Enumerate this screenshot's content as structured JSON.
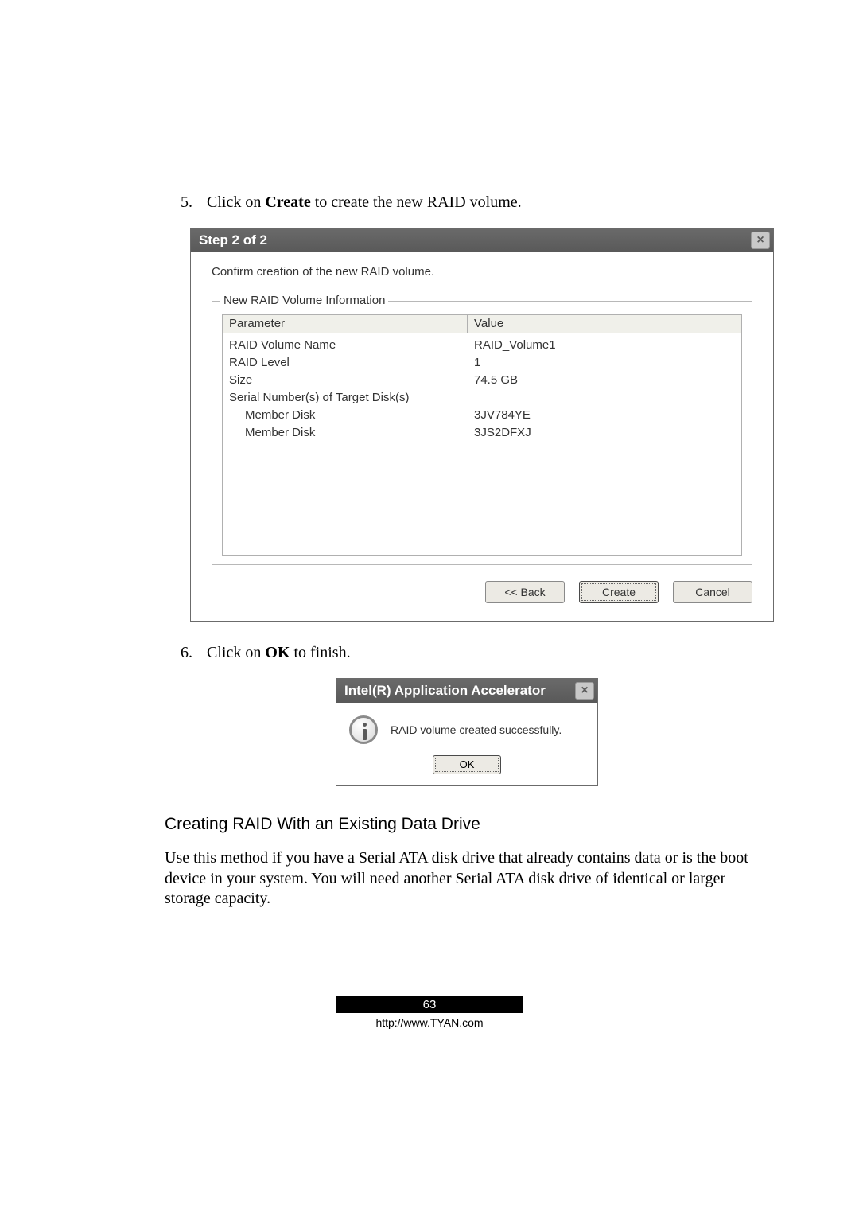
{
  "step5": {
    "num": "5.",
    "pre": "Click on ",
    "bold": "Create",
    "post": " to create the new RAID volume."
  },
  "step6": {
    "num": "6.",
    "pre": "Click on ",
    "bold": "OK",
    "post": " to finish."
  },
  "dialog1": {
    "title": "Step 2 of 2",
    "confirm": "Confirm creation of the new RAID volume.",
    "legend": "New RAID Volume Information",
    "head_param": "Parameter",
    "head_value": "Value",
    "rows": [
      {
        "p": "RAID Volume Name",
        "v": "RAID_Volume1",
        "indent": false
      },
      {
        "p": "RAID Level",
        "v": "1",
        "indent": false
      },
      {
        "p": "Size",
        "v": "74.5 GB",
        "indent": false
      },
      {
        "p": "Serial Number(s) of Target Disk(s)",
        "v": "",
        "indent": false
      },
      {
        "p": "Member Disk",
        "v": "3JV784YE",
        "indent": true
      },
      {
        "p": "Member Disk",
        "v": "3JS2DFXJ",
        "indent": true
      }
    ],
    "btn_back": "<< Back",
    "btn_create": "Create",
    "btn_cancel": "Cancel"
  },
  "dialog2": {
    "title": "Intel(R) Application Accelerator",
    "msg": "RAID volume created successfully.",
    "btn_ok": "OK"
  },
  "heading": "Creating RAID With an Existing Data Drive",
  "para": "Use this method if you have a Serial ATA disk drive that already contains data or is the boot device in your system. You will need another Serial ATA disk drive of identical or larger storage capacity.",
  "pagenum": "63",
  "footurl": "http://www.TYAN.com"
}
